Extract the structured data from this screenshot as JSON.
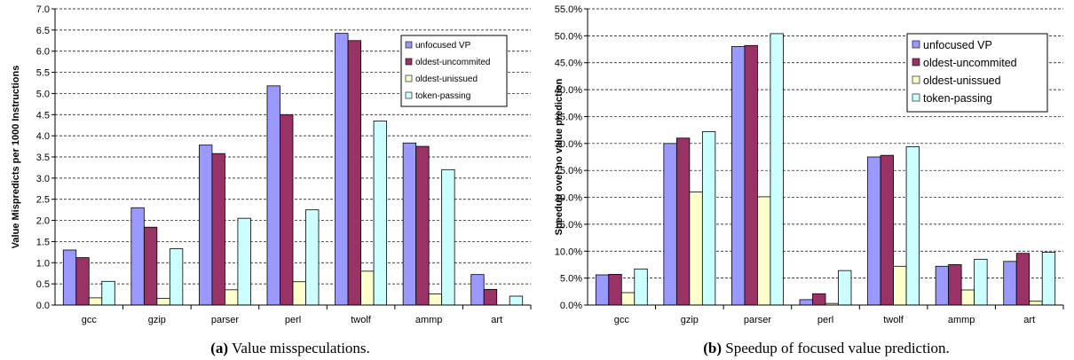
{
  "colors": {
    "unfocused": "#9999ff",
    "oldest_uncommited": "#993366",
    "oldest_unissued": "#ffffcc",
    "token_passing": "#ccffff"
  },
  "chart_data": [
    {
      "type": "bar",
      "categories": [
        "gcc",
        "gzip",
        "parser",
        "perl",
        "twolf",
        "ammp",
        "art"
      ],
      "series": [
        {
          "name": "unfocused VP",
          "values": [
            1.3,
            2.3,
            3.78,
            5.18,
            6.42,
            3.83,
            0.72
          ]
        },
        {
          "name": "oldest-uncommited",
          "values": [
            1.12,
            1.84,
            3.58,
            4.5,
            6.25,
            3.75,
            0.37
          ]
        },
        {
          "name": "oldest-unissued",
          "values": [
            0.17,
            0.16,
            0.36,
            0.55,
            0.8,
            0.26,
            0.0
          ]
        },
        {
          "name": "token-passing",
          "values": [
            0.56,
            1.33,
            2.05,
            2.25,
            4.35,
            3.2,
            0.21
          ]
        }
      ],
      "ylabel": "Value Mispredicts per 1000 Instructions",
      "ylim": [
        0,
        7
      ],
      "yticks": [
        "0.0",
        "0.5",
        "1.0",
        "1.5",
        "2.0",
        "2.5",
        "3.0",
        "3.5",
        "4.0",
        "4.5",
        "5.0",
        "5.5",
        "6.0",
        "6.5",
        "7.0"
      ],
      "caption_prefix": "(a)",
      "caption_text": " Value misspeculations.",
      "grid": true,
      "legend_position": "top-right"
    },
    {
      "type": "bar",
      "categories": [
        "gcc",
        "gzip",
        "parser",
        "perl",
        "twolf",
        "ammp",
        "art"
      ],
      "series": [
        {
          "name": "unfocused VP",
          "values": [
            5.6,
            30.0,
            48.0,
            1.0,
            27.5,
            7.2,
            8.1
          ]
        },
        {
          "name": "oldest-uncommited",
          "values": [
            5.7,
            31.0,
            48.2,
            2.1,
            27.8,
            7.5,
            9.6
          ]
        },
        {
          "name": "oldest-unissued",
          "values": [
            2.3,
            21.0,
            20.1,
            0.3,
            7.2,
            2.8,
            0.7
          ]
        },
        {
          "name": "token-passing",
          "values": [
            6.7,
            32.2,
            50.4,
            6.4,
            29.4,
            8.5,
            9.8
          ]
        }
      ],
      "ylabel": "Speedup over no value prediction",
      "ylim": [
        0,
        55
      ],
      "yticks": [
        "0.0%",
        "5.0%",
        "10.0%",
        "15.0%",
        "20.0%",
        "25.0%",
        "30.0%",
        "35.0%",
        "40.0%",
        "45.0%",
        "50.0%",
        "55.0%"
      ],
      "caption_prefix": "(b)",
      "caption_text": " Speedup of focused value prediction.",
      "grid": true,
      "legend_position": "top-right"
    }
  ]
}
